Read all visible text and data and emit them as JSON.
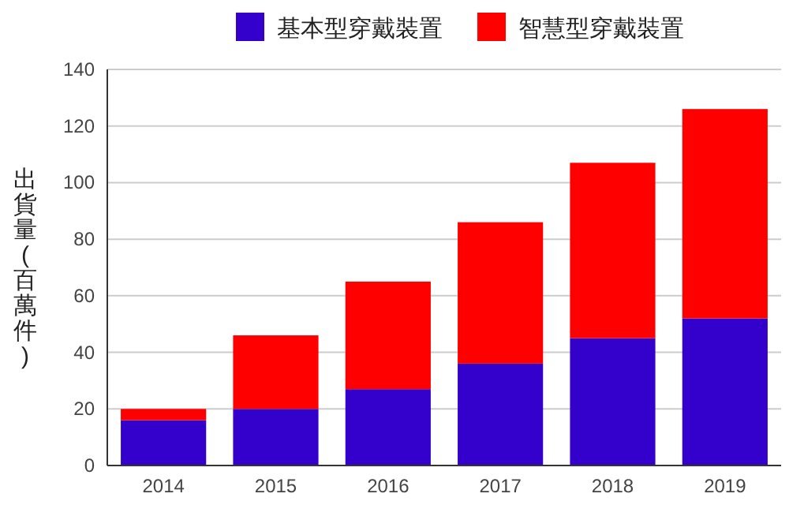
{
  "chart_data": {
    "type": "bar",
    "stacked": true,
    "ylabel": "出貨量(百萬件)",
    "categories": [
      "2014",
      "2015",
      "2016",
      "2017",
      "2018",
      "2019"
    ],
    "series": [
      {
        "name": "基本型穿戴裝置",
        "color": "#3300cc",
        "values": [
          16,
          20,
          27,
          36,
          45,
          52
        ]
      },
      {
        "name": "智慧型穿戴裝置",
        "color": "#ff0000",
        "values": [
          4,
          26,
          38,
          50,
          62,
          74
        ]
      }
    ],
    "ylim": [
      0,
      140
    ],
    "yticks": [
      0,
      20,
      40,
      60,
      80,
      100,
      120,
      140
    ],
    "grid": "y",
    "legend": "top"
  }
}
